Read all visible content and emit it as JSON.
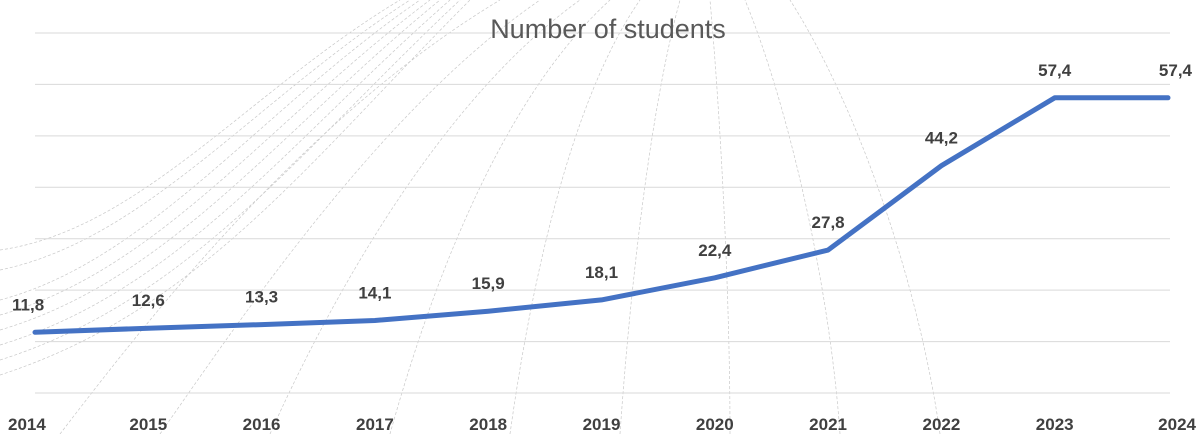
{
  "chart_data": {
    "type": "line",
    "title": "Number of students",
    "xlabel": "",
    "ylabel": "",
    "categories": [
      "2014",
      "2015",
      "2016",
      "2017",
      "2018",
      "2019",
      "2020",
      "2021",
      "2022",
      "2023",
      "2024"
    ],
    "series": [
      {
        "values": [
          11.8,
          12.6,
          13.3,
          14.1,
          15.9,
          18.1,
          22.4,
          27.8,
          44.2,
          57.4,
          57.4
        ],
        "data_labels": [
          "11,8",
          "12,6",
          "13,3",
          "14,1",
          "15,9",
          "18,1",
          "22,4",
          "27,8",
          "44,2",
          "57,4",
          "57,4"
        ],
        "color": "#4472c4"
      }
    ],
    "ylim": [
      0,
      70
    ],
    "y_major_step": 10,
    "y_tick_labels_visible": false,
    "grid": true,
    "legend": "none",
    "gridline_color": "#d9d9d9",
    "title_color": "#595959",
    "label_color": "#404040"
  }
}
